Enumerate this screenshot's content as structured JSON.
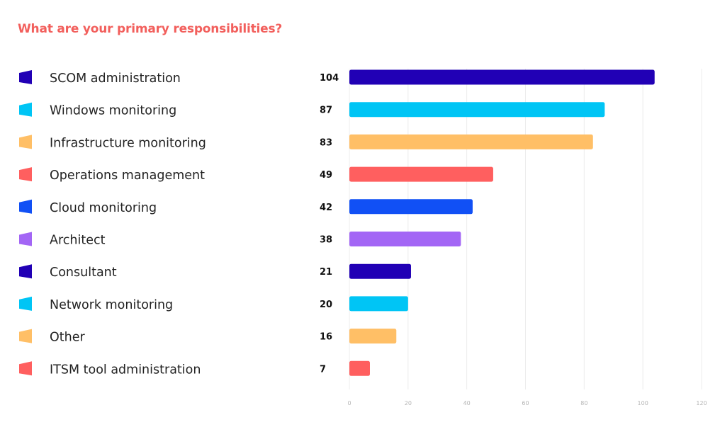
{
  "chart_data": {
    "type": "bar",
    "orientation": "horizontal",
    "title": "What are your primary responsibilities?",
    "title_color": "#f25f5c",
    "categories": [
      "SCOM administration",
      "Windows monitoring",
      "Infrastructure monitoring",
      "Operations management",
      "Cloud monitoring",
      "Architect",
      "Consultant",
      "Network monitoring",
      "Other",
      "ITSM tool administration"
    ],
    "values": [
      104,
      87,
      83,
      49,
      42,
      38,
      21,
      20,
      16,
      7
    ],
    "colors": [
      "#2100b5",
      "#00c5f5",
      "#ffbf66",
      "#ff5f5f",
      "#1150f5",
      "#a366f5",
      "#2100b5",
      "#00c5f5",
      "#ffbf66",
      "#ff5f5f"
    ],
    "xlim": [
      0,
      120
    ],
    "xticks": [
      0,
      20,
      40,
      60,
      80,
      100,
      120
    ],
    "grid": true,
    "legend_position": "left"
  }
}
